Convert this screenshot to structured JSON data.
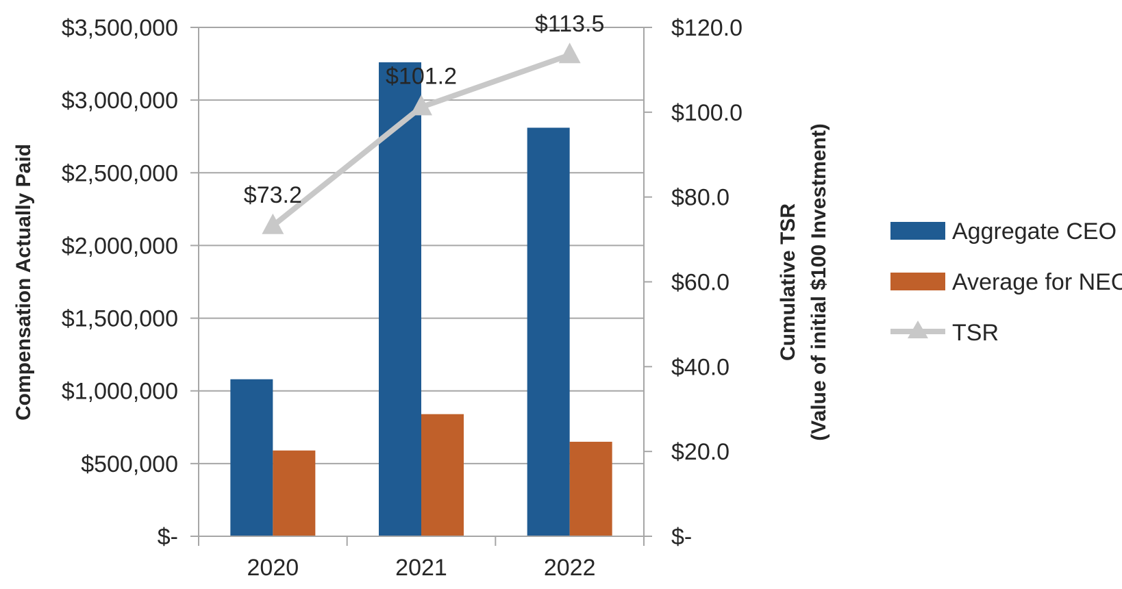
{
  "chart_data": {
    "type": "bar+line (dual axis)",
    "categories": [
      "2020",
      "2021",
      "2022"
    ],
    "series": [
      {
        "name": "Aggregate CEO",
        "type": "bar",
        "axis": "left",
        "color": "#1f5b92",
        "values": [
          1080000,
          3260000,
          2810000
        ]
      },
      {
        "name": "Average for NEO",
        "type": "bar",
        "axis": "left",
        "color": "#c0602a",
        "values": [
          590000,
          840000,
          650000
        ]
      },
      {
        "name": "TSR",
        "type": "line",
        "axis": "right",
        "color": "#c8c8c8",
        "marker": "triangle",
        "values": [
          73.2,
          101.2,
          113.5
        ],
        "data_labels": [
          "$73.2",
          "$101.2",
          "$113.5"
        ]
      }
    ],
    "left_axis": {
      "title": "Compensation Actually Paid",
      "ylim": [
        0,
        3500000
      ],
      "ticks": [
        0,
        500000,
        1000000,
        1500000,
        2000000,
        2500000,
        3000000,
        3500000
      ],
      "tick_labels": [
        "$-",
        "$500,000",
        "$1,000,000",
        "$1,500,000",
        "$2,000,000",
        "$2,500,000",
        "$3,000,000",
        "$3,500,000"
      ]
    },
    "right_axis": {
      "title_line1": "Cumulative TSR",
      "title_line2": "(Value of initial $100 Investment)",
      "ylim": [
        0,
        120
      ],
      "ticks": [
        0,
        20,
        40,
        60,
        80,
        100,
        120
      ],
      "tick_labels": [
        "$-",
        "$20.0",
        "$40.0",
        "$60.0",
        "$80.0",
        "$100.0",
        "$120.0"
      ]
    },
    "grid": true,
    "legend_position": "right",
    "gridline_color": "#a6a6a6"
  }
}
